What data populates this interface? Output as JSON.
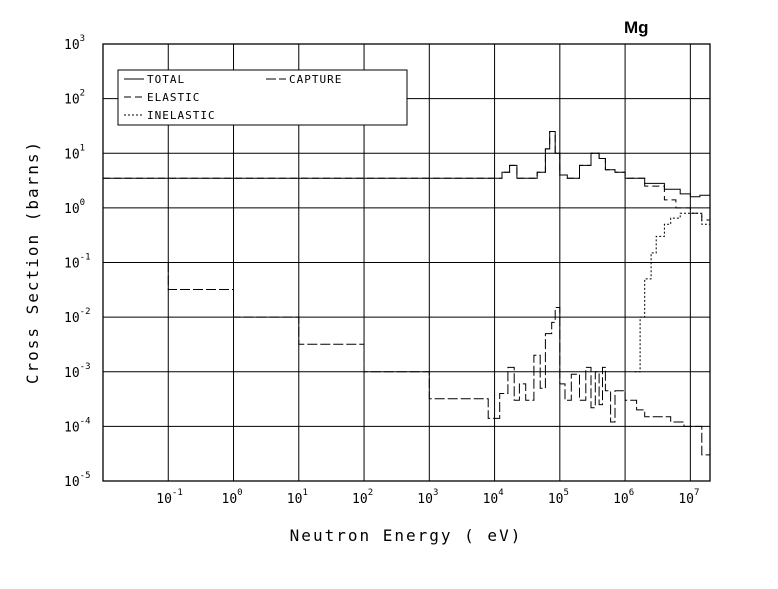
{
  "chart_data": {
    "type": "line",
    "title": "Mg",
    "xlabel": "Neutron Energy ( eV)",
    "ylabel": "Cross Section (barns)",
    "x_scale": "log",
    "y_scale": "log",
    "xlim": [
      0.01,
      20000000
    ],
    "ylim": [
      1e-05,
      1000
    ],
    "grid": true,
    "legend_position": "top-left",
    "x_ticks": [
      {
        "base": "10",
        "exp": "-1",
        "value": 0.1
      },
      {
        "base": "10",
        "exp": "0",
        "value": 1
      },
      {
        "base": "10",
        "exp": "1",
        "value": 10
      },
      {
        "base": "10",
        "exp": "2",
        "value": 100
      },
      {
        "base": "10",
        "exp": "3",
        "value": 1000
      },
      {
        "base": "10",
        "exp": "4",
        "value": 10000
      },
      {
        "base": "10",
        "exp": "5",
        "value": 100000
      },
      {
        "base": "10",
        "exp": "6",
        "value": 1000000
      },
      {
        "base": "10",
        "exp": "7",
        "value": 10000000
      }
    ],
    "y_ticks": [
      {
        "base": "10",
        "exp": "3",
        "value": 1000
      },
      {
        "base": "10",
        "exp": "2",
        "value": 100
      },
      {
        "base": "10",
        "exp": "1",
        "value": 10
      },
      {
        "base": "10",
        "exp": "0",
        "value": 1
      },
      {
        "base": "10",
        "exp": "-1",
        "value": 0.1
      },
      {
        "base": "10",
        "exp": "-2",
        "value": 0.01
      },
      {
        "base": "10",
        "exp": "-3",
        "value": 0.001
      },
      {
        "base": "10",
        "exp": "-4",
        "value": 0.0001
      },
      {
        "base": "10",
        "exp": "-5",
        "value": 1e-05
      }
    ],
    "series": [
      {
        "name": "TOTAL",
        "style": "solid",
        "x": [
          0.01,
          0.03,
          10000,
          13000,
          17000,
          22000,
          30000,
          45000,
          60000,
          70000,
          85000,
          100000,
          130000,
          200000,
          300000,
          400000,
          500000,
          700000,
          1000000,
          2000000,
          4000000,
          7000000,
          10000000,
          14000000,
          20000000
        ],
        "y": [
          3.5,
          3.5,
          3.5,
          4.5,
          6,
          3.5,
          3.5,
          4.5,
          12,
          25,
          10,
          4,
          3.5,
          6,
          10,
          8,
          5,
          4.5,
          3.5,
          2.8,
          2.2,
          1.8,
          1.6,
          1.7,
          1.8
        ]
      },
      {
        "name": "ELASTIC",
        "style": "dashed",
        "x": [
          0.01,
          0.03,
          10000,
          13000,
          17000,
          22000,
          30000,
          45000,
          60000,
          70000,
          85000,
          100000,
          130000,
          200000,
          300000,
          400000,
          500000,
          700000,
          1000000,
          2000000,
          4000000,
          6000000,
          10000000,
          15000000,
          20000000
        ],
        "y": [
          3.5,
          3.5,
          3.5,
          4.5,
          6,
          3.5,
          3.5,
          4.5,
          12,
          25,
          10,
          4,
          3.5,
          6,
          10,
          8,
          5,
          4.5,
          3.5,
          2.5,
          1.4,
          1.0,
          0.8,
          0.6,
          0.5
        ]
      },
      {
        "name": "INELASTIC",
        "style": "dotted",
        "x": [
          1400000,
          1700000,
          2000000,
          2500000,
          3000000,
          4000000,
          5000000,
          7000000,
          10000000,
          15000000,
          20000000
        ],
        "y": [
          0.001,
          0.01,
          0.05,
          0.15,
          0.3,
          0.5,
          0.65,
          0.8,
          0.8,
          0.5,
          0.2
        ]
      },
      {
        "name": "CAPTURE",
        "style": "longdash",
        "x": [
          0.01,
          0.1,
          1,
          10,
          100,
          1000,
          8000,
          12000,
          16000,
          20000,
          24000,
          30000,
          40000,
          50000,
          60000,
          75000,
          85000,
          100000,
          120000,
          150000,
          200000,
          250000,
          300000,
          350000,
          400000,
          450000,
          500000,
          600000,
          700000,
          1000000,
          1500000,
          2000000,
          3000000,
          5000000,
          8000000,
          12000000,
          15000000,
          20000000
        ],
        "y": [
          0.1,
          0.032,
          0.01,
          0.0032,
          0.001,
          0.00032,
          0.00014,
          0.0004,
          0.0012,
          0.0003,
          0.0006,
          0.0003,
          0.002,
          0.0005,
          0.005,
          0.008,
          0.015,
          0.0006,
          0.0003,
          0.0009,
          0.0003,
          0.0012,
          0.00022,
          0.001,
          0.00025,
          0.0012,
          0.00045,
          0.00012,
          0.00045,
          0.0003,
          0.0002,
          0.00015,
          0.00015,
          0.00012,
          0.0001,
          0.0001,
          3e-05,
          1e-05
        ]
      }
    ]
  }
}
